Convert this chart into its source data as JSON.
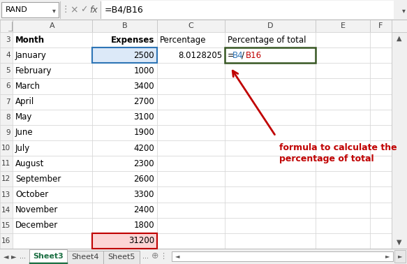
{
  "formula_bar_name": "RAND",
  "formula_bar_formula": "=B4/B16",
  "col_headers": [
    "A",
    "B",
    "C",
    "D",
    "E",
    "F"
  ],
  "row_numbers": [
    "3",
    "4",
    "5",
    "6",
    "7",
    "8",
    "9",
    "10",
    "11",
    "12",
    "13",
    "14",
    "15",
    "16"
  ],
  "months": [
    "January",
    "February",
    "March",
    "April",
    "May",
    "June",
    "July",
    "August",
    "September",
    "October",
    "November",
    "December"
  ],
  "expenses": [
    2500,
    1000,
    3400,
    2700,
    3100,
    1900,
    4200,
    2300,
    2600,
    3300,
    2400,
    1800
  ],
  "total": 31200,
  "percentage_jan": "8.0128205",
  "annotation_text_1": "formula to calculate the",
  "annotation_text_2": "percentage of total",
  "sheet_tabs": [
    "Sheet3",
    "Sheet4",
    "Sheet5"
  ],
  "header_row": [
    "Month",
    "Expenses",
    "Percentage",
    "Percentage of total"
  ],
  "bg_color": "#f0f0f0",
  "cell_bg": "#ffffff",
  "grid_color": "#d0d0d0",
  "row_header_bg": "#f2f2f2",
  "col_header_bg": "#f2f2f2",
  "selected_b4_fill": "#dce9f8",
  "selected_b4_border": "#2e75b6",
  "selected_b16_fill": "#fcd5d5",
  "selected_b16_border": "#c00000",
  "selected_d4_border": "#375623",
  "annotation_color": "#c00000",
  "formula_eq_color": "#000000",
  "formula_b4_color": "#2e75b6",
  "formula_b16_color": "#c00000",
  "tab_active_color": "#1f7145",
  "tab_active_text": "#1f7145",
  "scrollbar_bg": "#f0f0f0",
  "scrollbar_border": "#c0c0c0"
}
